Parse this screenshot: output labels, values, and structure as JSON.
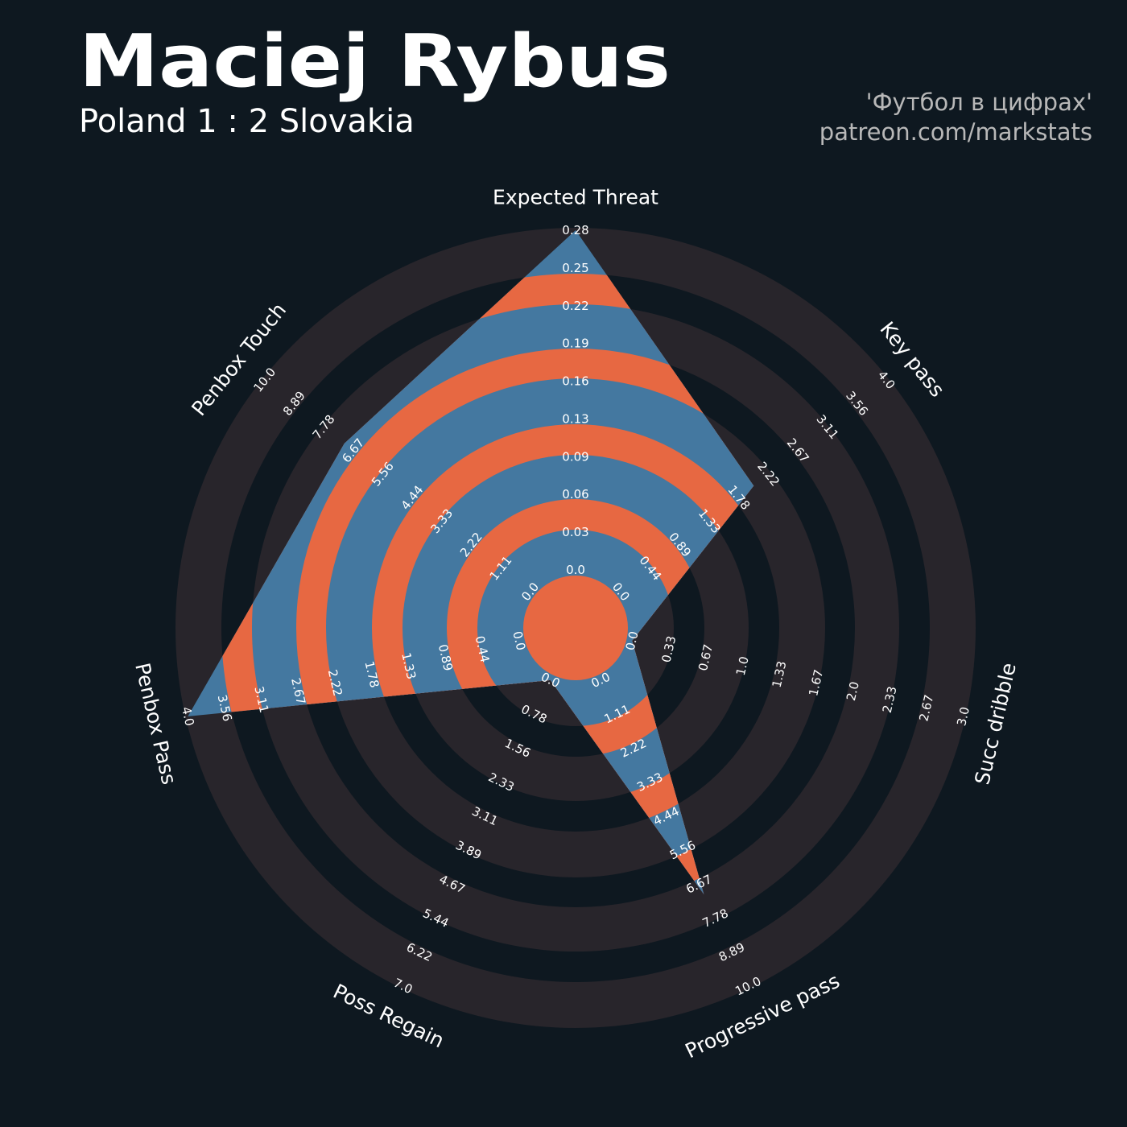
{
  "header": {
    "title": "Maciej Rybus",
    "subtitle": "Poland 1 : 2 Slovakia",
    "credit_line1": "'Футбол в цифрах'",
    "credit_line2": "patreon.com/markstats"
  },
  "colors": {
    "background": "#0e1820",
    "ring": "#28252b",
    "data_primary": "#4478a0",
    "data_secondary": "#e76842"
  },
  "chart_data": {
    "type": "radar",
    "grid": true,
    "params": [
      "Expected Threat",
      "Key pass",
      "Succ dribble",
      "Progressive pass",
      "Poss Regain",
      "Penbox Pass",
      "Penbox Touch"
    ],
    "ranges": [
      [
        0,
        0.28
      ],
      [
        0,
        4.0
      ],
      [
        0,
        3.0
      ],
      [
        0,
        10.0
      ],
      [
        0,
        7.0
      ],
      [
        0,
        4.0
      ],
      [
        0,
        10.0
      ]
    ],
    "values": [
      0.28,
      2.0,
      0.0,
      7.0,
      0.0,
      4.0,
      7.0
    ],
    "tick_labels": [
      [
        "0.0",
        "0.03",
        "0.06",
        "0.09",
        "0.13",
        "0.16",
        "0.19",
        "0.22",
        "0.25",
        "0.28"
      ],
      [
        "0.0",
        "0.44",
        "0.89",
        "1.33",
        "1.78",
        "2.22",
        "2.67",
        "3.11",
        "3.56",
        "4.0"
      ],
      [
        "0.0",
        "0.33",
        "0.67",
        "1.0",
        "1.33",
        "1.67",
        "2.0",
        "2.33",
        "2.67",
        "3.0"
      ],
      [
        "0.0",
        "1.11",
        "2.22",
        "3.33",
        "4.44",
        "5.56",
        "6.67",
        "7.78",
        "8.89",
        "10.0"
      ],
      [
        "0.0",
        "0.78",
        "1.56",
        "2.33",
        "3.11",
        "3.89",
        "4.67",
        "5.44",
        "6.22",
        "7.0"
      ],
      [
        "0.0",
        "0.44",
        "0.89",
        "1.33",
        "1.78",
        "2.22",
        "2.67",
        "3.11",
        "3.56",
        "4.0"
      ],
      [
        "0.0",
        "1.11",
        "2.22",
        "3.33",
        "4.44",
        "5.56",
        "6.67",
        "7.78",
        "8.89",
        "10.0"
      ]
    ]
  }
}
